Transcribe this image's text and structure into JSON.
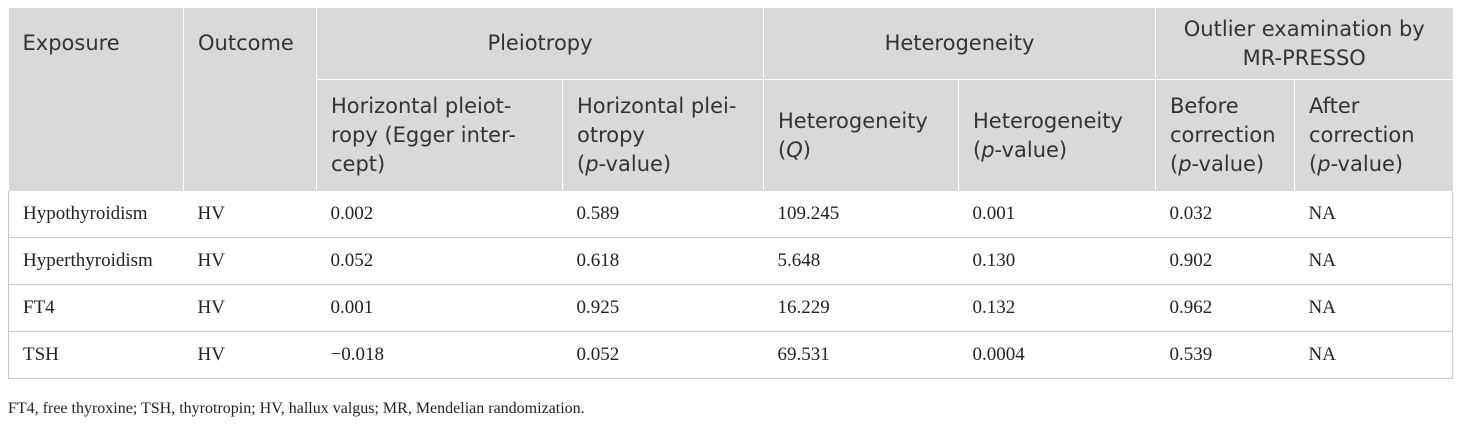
{
  "header": {
    "exposure": "Exposure",
    "outcome": "Outcome",
    "pleiotropy": "Pleiotropy",
    "heterogeneity": "Heterogeneity",
    "outlier_line1": "Outlier examination by",
    "outlier_line2": "MR-PRESSO",
    "sub": {
      "hp_egger_line1": "Horizontal pleiot-",
      "hp_egger_line2": "ropy (Egger inter-",
      "hp_egger_line3": "cept)",
      "hp_p_line1": "Horizontal plei-",
      "hp_p_line2": "otropy",
      "het_q_line1": "Heterogeneity",
      "het_q_symbol": "Q",
      "het_p_line1": "Heterogeneity",
      "p_symbol": "p",
      "value_suffix": "-value)",
      "before_line1": "Before",
      "before_line2": "correction",
      "after_line1": "After",
      "after_line2": "correction"
    }
  },
  "rows": [
    {
      "exposure": "Hypothyroidism",
      "outcome": "HV",
      "egger": "0.002",
      "egger_p": "0.589",
      "q": "109.245",
      "q_p": "0.001",
      "before": "0.032",
      "after": "NA"
    },
    {
      "exposure": "Hyperthyroidism",
      "outcome": "HV",
      "egger": "0.052",
      "egger_p": "0.618",
      "q": "5.648",
      "q_p": "0.130",
      "before": "0.902",
      "after": "NA"
    },
    {
      "exposure": "FT4",
      "outcome": "HV",
      "egger": "0.001",
      "egger_p": "0.925",
      "q": "16.229",
      "q_p": "0.132",
      "before": "0.962",
      "after": "NA"
    },
    {
      "exposure": "TSH",
      "outcome": "HV",
      "egger": "−0.018",
      "egger_p": "0.052",
      "q": "69.531",
      "q_p": "0.0004",
      "before": "0.539",
      "after": "NA"
    }
  ],
  "footnote": "FT4, free thyroxine; TSH, thyrotropin; HV, hallux valgus; MR, Mendelian randomization."
}
